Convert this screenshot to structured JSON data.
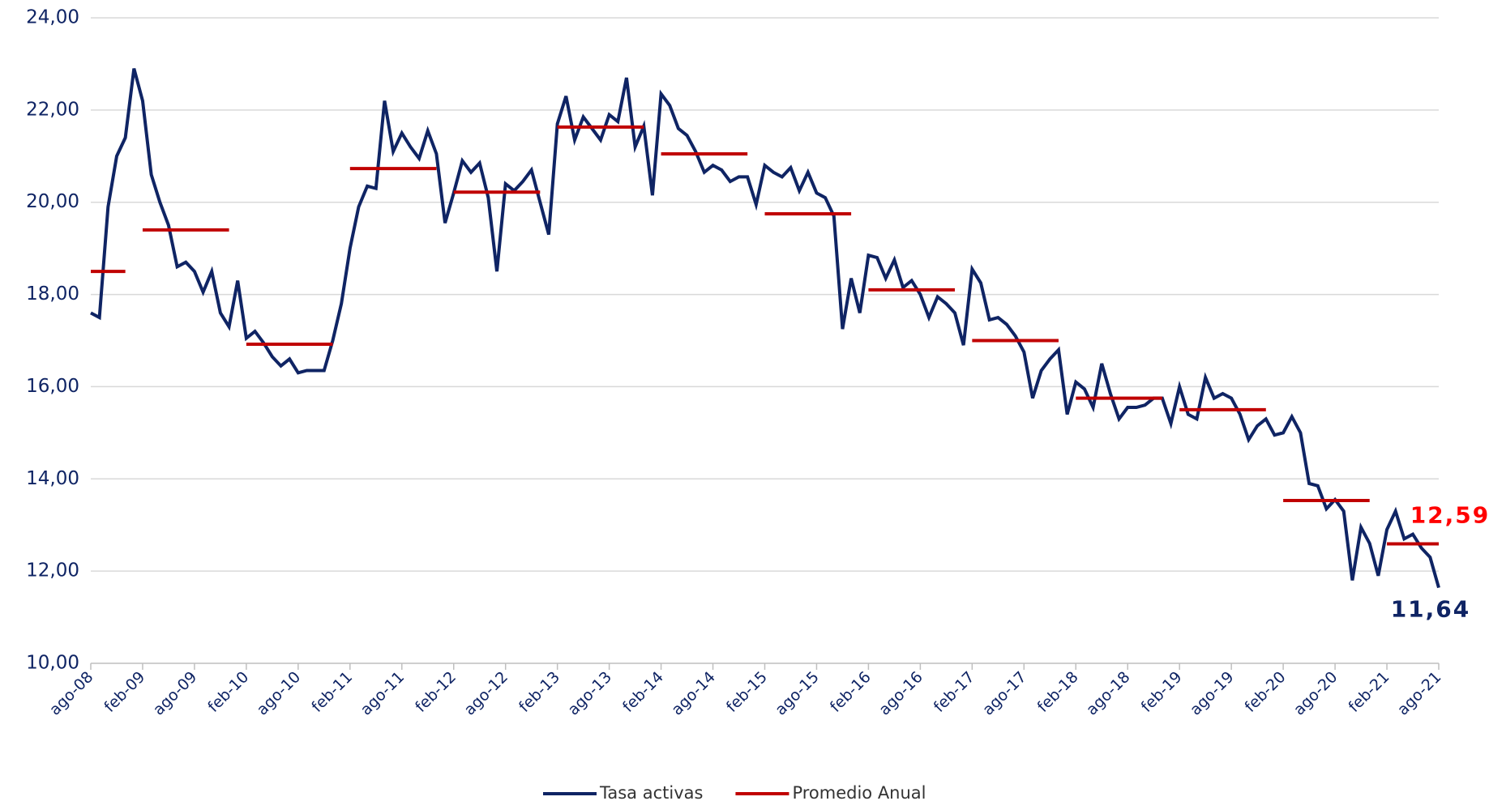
{
  "chart_data": {
    "type": "line",
    "categories": [
      "ago-08",
      null,
      null,
      null,
      null,
      null,
      "feb-09",
      null,
      null,
      null,
      null,
      null,
      "ago-09",
      null,
      null,
      null,
      null,
      null,
      "feb-10",
      null,
      null,
      null,
      null,
      null,
      "ago-10",
      null,
      null,
      null,
      null,
      null,
      "feb-11",
      null,
      null,
      null,
      null,
      null,
      "ago-11",
      null,
      null,
      null,
      null,
      null,
      "feb-12",
      null,
      null,
      null,
      null,
      null,
      "ago-12",
      null,
      null,
      null,
      null,
      null,
      "feb-13",
      null,
      null,
      null,
      null,
      null,
      "ago-13",
      null,
      null,
      null,
      null,
      null,
      "feb-14",
      null,
      null,
      null,
      null,
      null,
      "ago-14",
      null,
      null,
      null,
      null,
      null,
      "feb-15",
      null,
      null,
      null,
      null,
      null,
      "ago-15",
      null,
      null,
      null,
      null,
      null,
      "feb-16",
      null,
      null,
      null,
      null,
      null,
      "ago-16",
      null,
      null,
      null,
      null,
      null,
      "feb-17",
      null,
      null,
      null,
      null,
      null,
      "ago-17",
      null,
      null,
      null,
      null,
      null,
      "feb-18",
      null,
      null,
      null,
      null,
      null,
      "ago-18",
      null,
      null,
      null,
      null,
      null,
      "feb-19",
      null,
      null,
      null,
      null,
      null,
      "ago-19",
      null,
      null,
      null,
      null,
      null,
      "feb-20",
      null,
      null,
      null,
      null,
      null,
      "ago-20",
      null,
      null,
      null,
      null,
      null,
      "feb-21",
      null,
      null,
      null,
      null,
      null,
      "ago-21"
    ],
    "series": [
      {
        "name": "Tasa activas",
        "color": "#0f2464",
        "values": [
          17.6,
          17.5,
          19.9,
          21.0,
          21.4,
          22.9,
          22.2,
          20.6,
          20.0,
          19.5,
          18.6,
          18.7,
          18.5,
          18.05,
          18.5,
          17.6,
          17.3,
          18.3,
          17.05,
          17.2,
          16.95,
          16.65,
          16.45,
          16.6,
          16.3,
          16.35,
          16.35,
          16.35,
          17.0,
          17.8,
          19.0,
          19.9,
          20.35,
          20.3,
          22.2,
          21.1,
          21.5,
          21.2,
          20.95,
          21.55,
          21.05,
          19.55,
          20.2,
          20.9,
          20.65,
          20.85,
          20.1,
          18.5,
          20.4,
          20.25,
          20.45,
          20.7,
          20.0,
          19.3,
          21.7,
          22.3,
          21.35,
          21.85,
          21.6,
          21.35,
          21.9,
          21.75,
          22.7,
          21.2,
          21.65,
          20.15,
          22.35,
          22.1,
          21.6,
          21.45,
          21.1,
          20.65,
          20.8,
          20.7,
          20.45,
          20.55,
          20.55,
          19.95,
          20.8,
          20.65,
          20.55,
          20.75,
          20.25,
          20.65,
          20.2,
          20.1,
          19.7,
          17.25,
          18.35,
          17.6,
          18.85,
          18.8,
          18.35,
          18.75,
          18.15,
          18.3,
          18.0,
          17.5,
          17.95,
          17.8,
          17.6,
          16.9,
          18.55,
          18.25,
          17.45,
          17.5,
          17.35,
          17.1,
          16.75,
          15.75,
          16.35,
          16.6,
          16.8,
          15.4,
          16.1,
          15.95,
          15.55,
          16.5,
          15.85,
          15.3,
          15.55,
          15.55,
          15.6,
          15.75,
          15.75,
          15.2,
          16.0,
          15.4,
          15.3,
          16.2,
          15.75,
          15.85,
          15.75,
          15.4,
          14.85,
          15.15,
          15.3,
          14.95,
          15.0,
          15.35,
          15.0,
          13.9,
          13.85,
          13.35,
          13.55,
          13.3,
          11.8,
          12.95,
          12.6,
          11.9,
          12.9,
          13.3,
          12.7,
          12.8,
          12.5,
          12.3,
          11.64
        ]
      },
      {
        "name": "Promedio Anual",
        "color": "#c00000",
        "values": [
          18.5,
          18.5,
          18.5,
          18.5,
          18.5,
          null,
          19.4,
          19.4,
          19.4,
          19.4,
          19.4,
          19.4,
          19.4,
          19.4,
          19.4,
          19.4,
          19.4,
          null,
          16.92,
          16.92,
          16.92,
          16.92,
          16.92,
          16.92,
          16.92,
          16.92,
          16.92,
          16.92,
          16.92,
          null,
          20.73,
          20.73,
          20.73,
          20.73,
          20.73,
          20.73,
          20.73,
          20.73,
          20.73,
          20.73,
          20.73,
          null,
          20.22,
          20.22,
          20.22,
          20.22,
          20.22,
          20.22,
          20.22,
          20.22,
          20.22,
          20.22,
          20.22,
          null,
          21.63,
          21.63,
          21.63,
          21.63,
          21.63,
          21.63,
          21.63,
          21.63,
          21.63,
          21.63,
          21.63,
          null,
          21.05,
          21.05,
          21.05,
          21.05,
          21.05,
          21.05,
          21.05,
          21.05,
          21.05,
          21.05,
          21.05,
          null,
          19.75,
          19.75,
          19.75,
          19.75,
          19.75,
          19.75,
          19.75,
          19.75,
          19.75,
          19.75,
          19.75,
          null,
          18.1,
          18.1,
          18.1,
          18.1,
          18.1,
          18.1,
          18.1,
          18.1,
          18.1,
          18.1,
          18.1,
          null,
          17.0,
          17.0,
          17.0,
          17.0,
          17.0,
          17.0,
          17.0,
          17.0,
          17.0,
          17.0,
          17.0,
          null,
          15.75,
          15.75,
          15.75,
          15.75,
          15.75,
          15.75,
          15.75,
          15.75,
          15.75,
          15.75,
          15.75,
          null,
          15.5,
          15.5,
          15.5,
          15.5,
          15.5,
          15.5,
          15.5,
          15.5,
          15.5,
          15.5,
          15.5,
          null,
          13.53,
          13.53,
          13.53,
          13.53,
          13.53,
          13.53,
          13.53,
          13.53,
          13.53,
          13.53,
          13.53,
          null,
          12.59,
          12.59,
          12.59,
          12.59,
          12.59,
          12.59,
          12.59
        ]
      }
    ],
    "annotations": [
      {
        "text": "12,59",
        "color": "#ff0000"
      },
      {
        "text": "11,64",
        "color": "#0f2464"
      }
    ],
    "ylim": [
      10,
      24
    ],
    "yticks": [
      {
        "value": 10,
        "label": "10,00"
      },
      {
        "value": 12,
        "label": "12,00"
      },
      {
        "value": 14,
        "label": "14,00"
      },
      {
        "value": 16,
        "label": "16,00"
      },
      {
        "value": 18,
        "label": "18,00"
      },
      {
        "value": 20,
        "label": "20,00"
      },
      {
        "value": 22,
        "label": "22,00"
      },
      {
        "value": 24,
        "label": "24,00"
      }
    ],
    "grid": true,
    "legend": "bottom"
  }
}
